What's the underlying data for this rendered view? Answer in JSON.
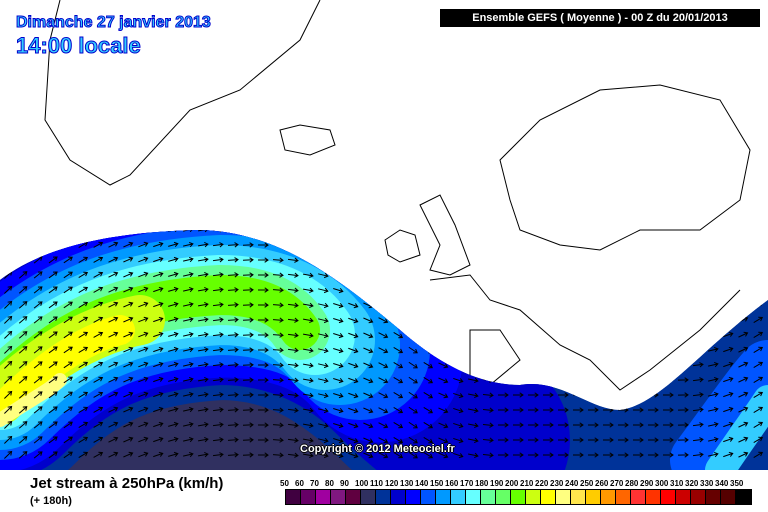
{
  "title": {
    "date": "Dimanche 27 janvier 2013",
    "time": "14:00 locale"
  },
  "header": "Ensemble GEFS ( Moyenne )  -  00 Z du 20/01/2013",
  "copyright": "Copyright © 2012 Meteociel.fr",
  "footer": {
    "parameter": "Jet stream à 250hPa (km/h)",
    "lead": "(+ 180h)"
  },
  "legend": {
    "values": [
      "50",
      "60",
      "70",
      "80",
      "90",
      "100",
      "110",
      "120",
      "130",
      "140",
      "150",
      "160",
      "170",
      "180",
      "190",
      "200",
      "210",
      "220",
      "230",
      "240",
      "250",
      "260",
      "270",
      "280",
      "290",
      "300",
      "310",
      "320",
      "330",
      "340",
      "350"
    ],
    "colors": [
      "#400040",
      "#660066",
      "#a000a0",
      "#801880",
      "#600040",
      "#303060",
      "#003399",
      "#0000cc",
      "#0000ff",
      "#0055ff",
      "#0099ff",
      "#33ccff",
      "#66ffff",
      "#66ff99",
      "#66ff66",
      "#66ff00",
      "#ccff11",
      "#ffff00",
      "#ffff80",
      "#ffe64d",
      "#ffcc00",
      "#ff9900",
      "#ff6600",
      "#ff3333",
      "#ff3300",
      "#ff0000",
      "#cc0000",
      "#990000",
      "#660000",
      "#550000",
      "#000000"
    ]
  }
}
